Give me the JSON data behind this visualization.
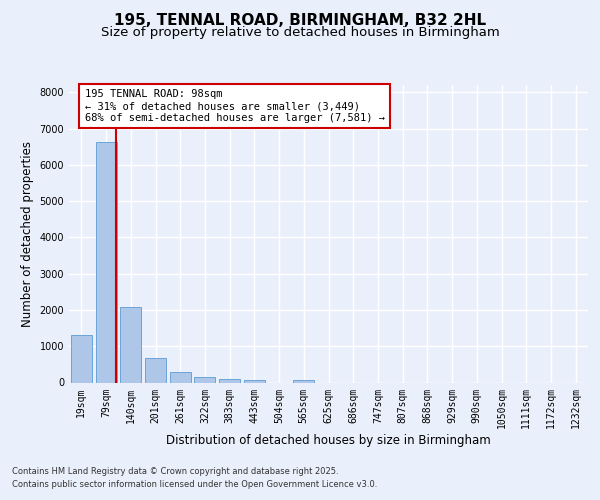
{
  "title_line1": "195, TENNAL ROAD, BIRMINGHAM, B32 2HL",
  "title_line2": "Size of property relative to detached houses in Birmingham",
  "xlabel": "Distribution of detached houses by size in Birmingham",
  "ylabel": "Number of detached properties",
  "categories": [
    "19sqm",
    "79sqm",
    "140sqm",
    "201sqm",
    "261sqm",
    "322sqm",
    "383sqm",
    "443sqm",
    "504sqm",
    "565sqm",
    "625sqm",
    "686sqm",
    "747sqm",
    "807sqm",
    "868sqm",
    "929sqm",
    "990sqm",
    "1050sqm",
    "1111sqm",
    "1172sqm",
    "1232sqm"
  ],
  "values": [
    1310,
    6620,
    2080,
    670,
    295,
    145,
    90,
    60,
    0,
    60,
    0,
    0,
    0,
    0,
    0,
    0,
    0,
    0,
    0,
    0,
    0
  ],
  "bar_color": "#aec6e8",
  "bar_edge_color": "#5b9bd5",
  "vline_color": "#cc0000",
  "annotation_text": "195 TENNAL ROAD: 98sqm\n← 31% of detached houses are smaller (3,449)\n68% of semi-detached houses are larger (7,581) →",
  "annotation_box_color": "#ffffff",
  "annotation_box_edge_color": "#cc0000",
  "ylim": [
    0,
    8200
  ],
  "yticks": [
    0,
    1000,
    2000,
    3000,
    4000,
    5000,
    6000,
    7000,
    8000
  ],
  "bg_color": "#eaf0fb",
  "plot_bg_color": "#eaf0fb",
  "grid_color": "#ffffff",
  "footer_line1": "Contains HM Land Registry data © Crown copyright and database right 2025.",
  "footer_line2": "Contains public sector information licensed under the Open Government Licence v3.0.",
  "title_fontsize": 11,
  "subtitle_fontsize": 9.5,
  "tick_fontsize": 7,
  "label_fontsize": 8.5
}
